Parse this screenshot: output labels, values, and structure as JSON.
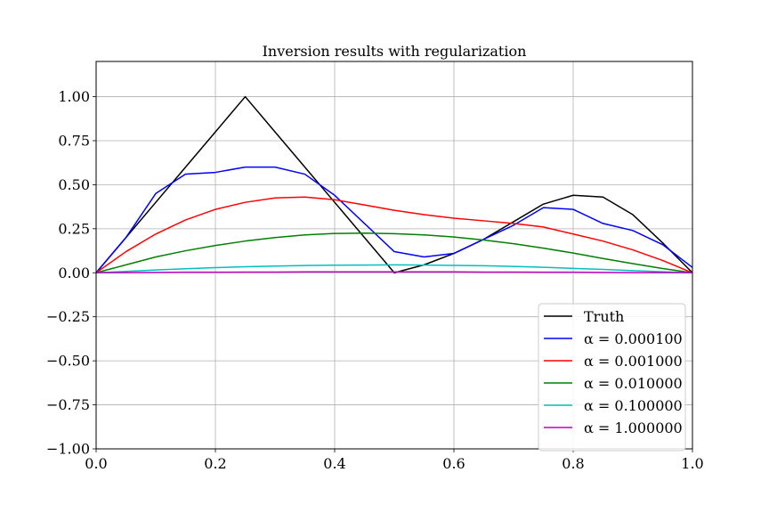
{
  "chart_data": {
    "type": "line",
    "title": "Inversion results with regularization",
    "xlabel": "",
    "ylabel": "",
    "xlim": [
      0.0,
      1.0
    ],
    "ylim": [
      -1.0,
      1.2
    ],
    "grid": true,
    "legend_position": "bottom-right",
    "x_ticks": [
      0.0,
      0.2,
      0.4,
      0.6,
      0.8,
      1.0
    ],
    "x_tick_labels": [
      "0.0",
      "0.2",
      "0.4",
      "0.6",
      "0.8",
      "1.0"
    ],
    "y_ticks": [
      -1.0,
      -0.75,
      -0.5,
      -0.25,
      0.0,
      0.25,
      0.5,
      0.75,
      1.0
    ],
    "y_tick_labels": [
      "−1.00",
      "−0.75",
      "−0.50",
      "−0.25",
      "0.00",
      "0.25",
      "0.50",
      "0.75",
      "1.00"
    ],
    "x": [
      0.0,
      0.05,
      0.1,
      0.15,
      0.2,
      0.25,
      0.3,
      0.35,
      0.4,
      0.45,
      0.5,
      0.55,
      0.6,
      0.65,
      0.7,
      0.75,
      0.8,
      0.85,
      0.9,
      0.95,
      1.0
    ],
    "series": [
      {
        "name": "Truth",
        "color": "#000000",
        "values": [
          0.0,
          0.2,
          0.4,
          0.6,
          0.8,
          1.0,
          0.8,
          0.6,
          0.4,
          0.2,
          0.0,
          0.045,
          0.11,
          0.19,
          0.29,
          0.39,
          0.44,
          0.43,
          0.33,
          0.17,
          0.0
        ]
      },
      {
        "name": "α = 0.000100",
        "color": "#0000ff",
        "values": [
          0.0,
          0.2,
          0.45,
          0.56,
          0.57,
          0.6,
          0.6,
          0.56,
          0.44,
          0.28,
          0.12,
          0.09,
          0.11,
          0.19,
          0.27,
          0.37,
          0.36,
          0.28,
          0.24,
          0.16,
          0.03
        ]
      },
      {
        "name": "α = 0.001000",
        "color": "#ff0000",
        "values": [
          0.0,
          0.12,
          0.22,
          0.3,
          0.36,
          0.4,
          0.425,
          0.43,
          0.415,
          0.385,
          0.355,
          0.33,
          0.31,
          0.295,
          0.28,
          0.26,
          0.22,
          0.18,
          0.13,
          0.07,
          0.0
        ]
      },
      {
        "name": "α = 0.010000",
        "color": "#008000",
        "values": [
          0.0,
          0.045,
          0.09,
          0.125,
          0.155,
          0.18,
          0.2,
          0.215,
          0.223,
          0.225,
          0.222,
          0.215,
          0.203,
          0.186,
          0.165,
          0.14,
          0.112,
          0.081,
          0.052,
          0.024,
          0.0
        ]
      },
      {
        "name": "α = 0.100000",
        "color": "#00bfbf",
        "values": [
          0.0,
          0.008,
          0.016,
          0.023,
          0.029,
          0.034,
          0.038,
          0.041,
          0.043,
          0.044,
          0.045,
          0.044,
          0.042,
          0.04,
          0.036,
          0.031,
          0.025,
          0.019,
          0.012,
          0.006,
          0.0
        ]
      },
      {
        "name": "α = 1.000000",
        "color": "#bf00bf",
        "values": [
          0.0,
          0.001,
          0.002,
          0.003,
          0.003,
          0.004,
          0.004,
          0.005,
          0.005,
          0.005,
          0.005,
          0.005,
          0.005,
          0.004,
          0.004,
          0.003,
          0.003,
          0.002,
          0.001,
          0.001,
          0.0
        ]
      }
    ]
  }
}
